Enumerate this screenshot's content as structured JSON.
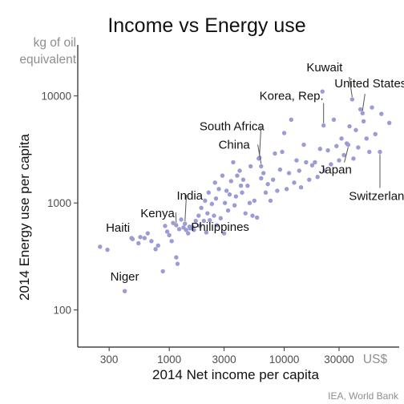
{
  "chart_data": {
    "type": "scatter",
    "title": "Income vs Energy use",
    "xlabel": "2014 Net income per capita",
    "ylabel": "2014 Energy use per capita",
    "x_unit": "US$",
    "y_unit_line1": "kg of oil",
    "y_unit_line2": "equivalent",
    "source": "IEA, World Bank",
    "x_scale": "log",
    "y_scale": "log",
    "xlim": [
      160,
      100000
    ],
    "ylim": [
      45,
      30000
    ],
    "x_ticks": [
      {
        "value": 300,
        "label": "300"
      },
      {
        "value": 1000,
        "label": "1000"
      },
      {
        "value": 3000,
        "label": "3000"
      },
      {
        "value": 10000,
        "label": "10000"
      },
      {
        "value": 30000,
        "label": "30000"
      }
    ],
    "y_ticks": [
      {
        "value": 100,
        "label": "100"
      },
      {
        "value": 1000,
        "label": "1000"
      },
      {
        "value": 10000,
        "label": "10000"
      }
    ],
    "grid": false,
    "legend": "none",
    "color": "#9b9bd6",
    "labeled_points": [
      {
        "label": "Niger",
        "x": 410,
        "y": 150
      },
      {
        "label": "Haiti",
        "x": 470,
        "y": 470
      },
      {
        "label": "Kenya",
        "x": 1150,
        "y": 620
      },
      {
        "label": "Philippines",
        "x": 1500,
        "y": 600
      },
      {
        "label": "India",
        "x": 1370,
        "y": 640
      },
      {
        "label": "China",
        "x": 6300,
        "y": 2200
      },
      {
        "label": "South Africa",
        "x": 6100,
        "y": 2650
      },
      {
        "label": "Korea, Rep.",
        "x": 22000,
        "y": 5300
      },
      {
        "label": "Kuwait",
        "x": 39000,
        "y": 9300
      },
      {
        "label": "United States",
        "x": 48000,
        "y": 6900
      },
      {
        "label": "Japan",
        "x": 36000,
        "y": 3500
      },
      {
        "label": "Switzerland",
        "x": 68000,
        "y": 3000
      }
    ],
    "points": [
      {
        "x": 250,
        "y": 390
      },
      {
        "x": 290,
        "y": 365
      },
      {
        "x": 480,
        "y": 460
      },
      {
        "x": 540,
        "y": 420
      },
      {
        "x": 560,
        "y": 480
      },
      {
        "x": 610,
        "y": 470
      },
      {
        "x": 650,
        "y": 520
      },
      {
        "x": 700,
        "y": 440
      },
      {
        "x": 760,
        "y": 370
      },
      {
        "x": 800,
        "y": 400
      },
      {
        "x": 880,
        "y": 230
      },
      {
        "x": 920,
        "y": 610
      },
      {
        "x": 960,
        "y": 540
      },
      {
        "x": 1000,
        "y": 500
      },
      {
        "x": 1050,
        "y": 440
      },
      {
        "x": 1080,
        "y": 650
      },
      {
        "x": 1150,
        "y": 310
      },
      {
        "x": 1180,
        "y": 270
      },
      {
        "x": 1220,
        "y": 570
      },
      {
        "x": 1270,
        "y": 700
      },
      {
        "x": 1330,
        "y": 590
      },
      {
        "x": 1400,
        "y": 560
      },
      {
        "x": 1460,
        "y": 520
      },
      {
        "x": 1520,
        "y": 580
      },
      {
        "x": 1580,
        "y": 600
      },
      {
        "x": 1640,
        "y": 560
      },
      {
        "x": 1700,
        "y": 680
      },
      {
        "x": 1800,
        "y": 760
      },
      {
        "x": 1850,
        "y": 610
      },
      {
        "x": 1900,
        "y": 900
      },
      {
        "x": 2000,
        "y": 680
      },
      {
        "x": 2050,
        "y": 1050
      },
      {
        "x": 2100,
        "y": 530
      },
      {
        "x": 2150,
        "y": 800
      },
      {
        "x": 2200,
        "y": 1250
      },
      {
        "x": 2250,
        "y": 690
      },
      {
        "x": 2350,
        "y": 980
      },
      {
        "x": 2450,
        "y": 760
      },
      {
        "x": 2500,
        "y": 1550
      },
      {
        "x": 2550,
        "y": 1100
      },
      {
        "x": 2600,
        "y": 620
      },
      {
        "x": 2700,
        "y": 1350
      },
      {
        "x": 2800,
        "y": 720
      },
      {
        "x": 2900,
        "y": 1800
      },
      {
        "x": 3000,
        "y": 520
      },
      {
        "x": 3050,
        "y": 1000
      },
      {
        "x": 3150,
        "y": 1300
      },
      {
        "x": 3250,
        "y": 850
      },
      {
        "x": 3350,
        "y": 1200
      },
      {
        "x": 3450,
        "y": 1600
      },
      {
        "x": 3600,
        "y": 2400
      },
      {
        "x": 3700,
        "y": 950
      },
      {
        "x": 3800,
        "y": 1150
      },
      {
        "x": 3900,
        "y": 1800
      },
      {
        "x": 4100,
        "y": 2000
      },
      {
        "x": 4200,
        "y": 1450
      },
      {
        "x": 4300,
        "y": 1250
      },
      {
        "x": 4400,
        "y": 1650
      },
      {
        "x": 4600,
        "y": 800
      },
      {
        "x": 4800,
        "y": 1450
      },
      {
        "x": 5000,
        "y": 1000
      },
      {
        "x": 5100,
        "y": 2200
      },
      {
        "x": 5300,
        "y": 760
      },
      {
        "x": 5500,
        "y": 1050
      },
      {
        "x": 5800,
        "y": 730
      },
      {
        "x": 6000,
        "y": 2600
      },
      {
        "x": 6300,
        "y": 1700
      },
      {
        "x": 6600,
        "y": 1900
      },
      {
        "x": 6900,
        "y": 1250
      },
      {
        "x": 7200,
        "y": 1500
      },
      {
        "x": 7600,
        "y": 1050
      },
      {
        "x": 8000,
        "y": 1650
      },
      {
        "x": 8300,
        "y": 2900
      },
      {
        "x": 8700,
        "y": 1300
      },
      {
        "x": 9200,
        "y": 2050
      },
      {
        "x": 9600,
        "y": 3000
      },
      {
        "x": 10000,
        "y": 4500
      },
      {
        "x": 10500,
        "y": 1350
      },
      {
        "x": 11000,
        "y": 1900
      },
      {
        "x": 11500,
        "y": 6000
      },
      {
        "x": 12200,
        "y": 1550
      },
      {
        "x": 12800,
        "y": 2500
      },
      {
        "x": 13500,
        "y": 2000
      },
      {
        "x": 14000,
        "y": 1400
      },
      {
        "x": 14800,
        "y": 3500
      },
      {
        "x": 15500,
        "y": 2400
      },
      {
        "x": 16500,
        "y": 1650
      },
      {
        "x": 17500,
        "y": 2250
      },
      {
        "x": 18500,
        "y": 2400
      },
      {
        "x": 19500,
        "y": 1750
      },
      {
        "x": 20500,
        "y": 3200
      },
      {
        "x": 21500,
        "y": 11000
      },
      {
        "x": 22500,
        "y": 2000
      },
      {
        "x": 24000,
        "y": 3100
      },
      {
        "x": 25500,
        "y": 2300
      },
      {
        "x": 27000,
        "y": 6000
      },
      {
        "x": 28500,
        "y": 3400
      },
      {
        "x": 30000,
        "y": 2500
      },
      {
        "x": 31500,
        "y": 4000
      },
      {
        "x": 33000,
        "y": 2800
      },
      {
        "x": 35000,
        "y": 3600
      },
      {
        "x": 37000,
        "y": 5200
      },
      {
        "x": 40000,
        "y": 2600
      },
      {
        "x": 42000,
        "y": 4800
      },
      {
        "x": 44000,
        "y": 3300
      },
      {
        "x": 46000,
        "y": 7500
      },
      {
        "x": 49000,
        "y": 5800
      },
      {
        "x": 52000,
        "y": 4000
      },
      {
        "x": 55000,
        "y": 3000
      },
      {
        "x": 58000,
        "y": 7800
      },
      {
        "x": 62000,
        "y": 4400
      },
      {
        "x": 70000,
        "y": 6800
      },
      {
        "x": 82000,
        "y": 5600
      }
    ]
  }
}
